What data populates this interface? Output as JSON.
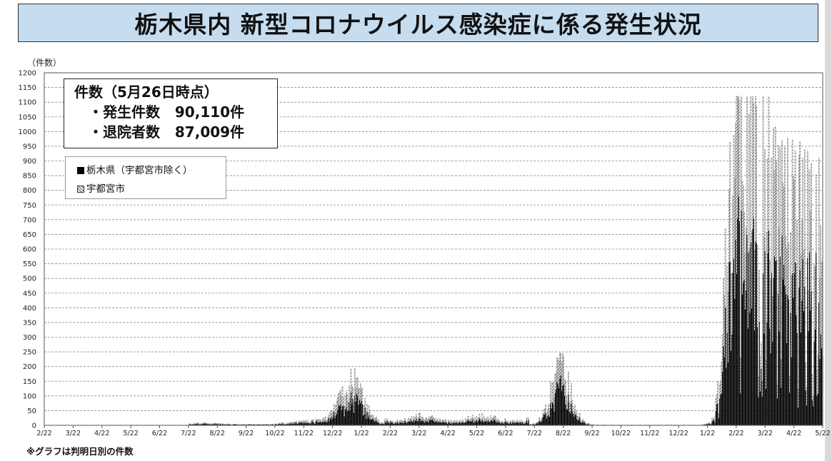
{
  "title": "栃木県内 新型コロナウイルス感染症に係る発生状況",
  "summary": {
    "heading": "件数（5月26日時点）",
    "lines": [
      {
        "label": "・発生件数",
        "value": "90,110件"
      },
      {
        "label": "・退院者数",
        "value": "87,009件"
      }
    ]
  },
  "legend": [
    {
      "label": "栃木県（宇都宮市除く）",
      "pattern": "solid"
    },
    {
      "label": "宇都宮市",
      "pattern": "hatched"
    }
  ],
  "footnote": "※グラフは判明日別の件数",
  "chart_data": {
    "type": "bar",
    "stacked": true,
    "ylabel": "（件数）",
    "ylim": [
      0,
      1200
    ],
    "yticks": [
      0,
      50,
      100,
      150,
      200,
      250,
      300,
      350,
      400,
      450,
      500,
      550,
      600,
      650,
      700,
      750,
      800,
      850,
      900,
      950,
      1000,
      1050,
      1100,
      1150,
      1200
    ],
    "x_tick_labels": [
      "2/22",
      "3/22",
      "4/22",
      "5/22",
      "6/22",
      "7/22",
      "8/22",
      "9/22",
      "10/22",
      "11/22",
      "12/22",
      "1/22",
      "2/22",
      "3/22",
      "4/22",
      "5/22",
      "6/22",
      "7/22",
      "8/22",
      "9/22",
      "10/22",
      "11/22",
      "12/22",
      "1/22",
      "2/22",
      "3/22",
      "4/22",
      "5/22"
    ],
    "grid": "horizontal-dashed",
    "legend_position": "top-left",
    "approx_daily_totals_by_period": [
      {
        "period": "2020-02-22 to 2020-07-22",
        "typical_total": 1
      },
      {
        "period": "2020-07-22 to 2020-10-22",
        "typical_total": 5
      },
      {
        "period": "2020-10-22 to 2020-12-22",
        "typical_total": 20
      },
      {
        "period": "2020-12-22 to 2021-01-22",
        "peak_total": 170
      },
      {
        "period": "2021-02-22 to 2021-07-22",
        "typical_total": 25
      },
      {
        "period": "2021-07-22 to 2021-09-22",
        "peak_total": 260
      },
      {
        "period": "2021-10-22 to 2021-12-22",
        "typical_total": 2
      },
      {
        "period": "2022-01-22 to 2022-02-22",
        "peak_total": 1120
      },
      {
        "period": "2022-02-22 to 2022-05-22",
        "typical_total": 600
      }
    ],
    "colors": {
      "tochigi": "#000000",
      "utsunomiya": "#555555"
    }
  }
}
